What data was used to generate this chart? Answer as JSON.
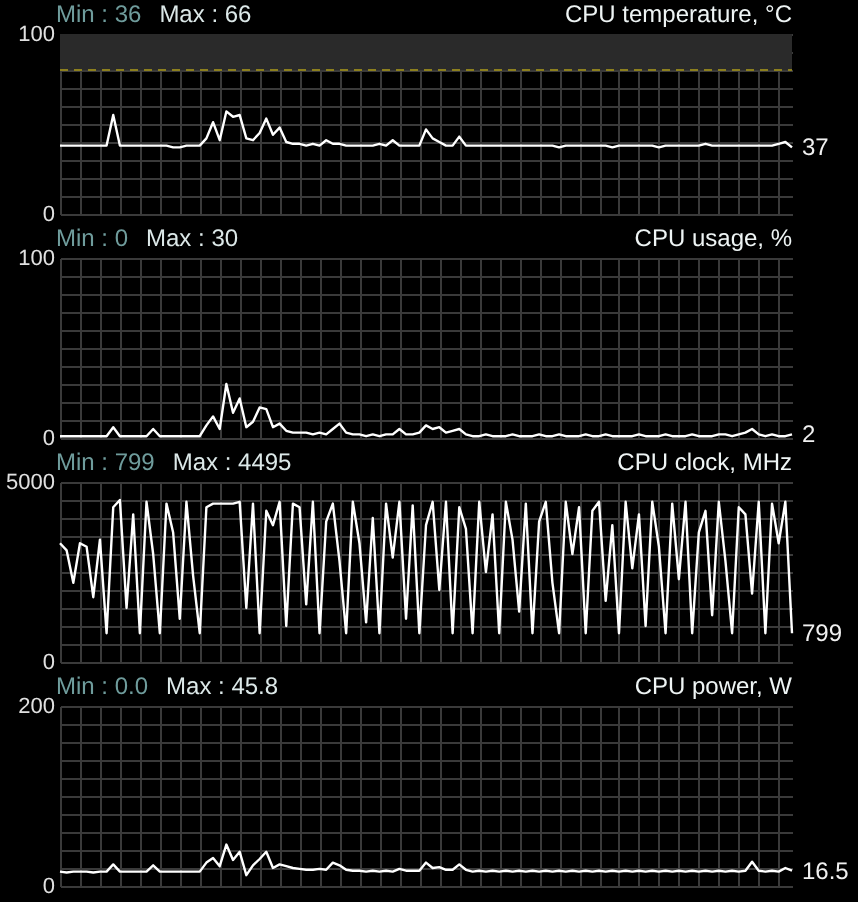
{
  "chart_data": [
    {
      "type": "line",
      "title": "CPU temperature, °C",
      "categories": [
        null,
        null,
        null,
        null,
        null,
        null,
        null,
        null,
        null,
        null,
        null,
        null,
        null,
        null,
        null,
        null,
        null,
        null,
        null,
        null,
        null,
        null,
        null,
        null,
        null,
        null,
        null,
        null,
        null,
        null,
        null,
        null,
        null,
        null,
        null,
        null,
        null,
        null,
        null,
        null,
        null,
        null,
        null,
        null,
        null,
        null,
        null,
        null,
        null,
        null,
        null,
        null,
        null,
        null,
        null,
        null,
        null,
        null,
        null,
        null,
        null,
        null,
        null,
        null,
        null,
        null,
        null,
        null,
        null,
        null,
        null,
        null,
        null,
        null,
        null,
        null,
        null,
        null,
        null,
        null,
        null,
        null,
        null,
        null,
        null,
        null,
        null,
        null,
        null,
        null,
        null,
        null,
        null,
        null,
        null,
        null,
        null,
        null,
        null,
        null,
        null,
        null,
        null,
        null,
        null,
        null,
        null,
        null,
        null,
        null,
        null
      ],
      "series": [
        {
          "color": "#ffffff",
          "values": [
            38,
            38,
            38,
            38,
            38,
            38,
            38,
            38,
            55,
            38,
            38,
            38,
            38,
            38,
            38,
            38,
            38,
            37,
            37,
            38,
            38,
            38,
            42,
            51,
            41,
            57,
            54,
            55,
            42,
            41,
            45,
            53,
            44,
            48,
            40,
            39,
            39,
            38,
            39,
            38,
            41,
            39,
            39,
            38,
            38,
            38,
            38,
            38,
            39,
            38,
            41,
            38,
            38,
            38,
            38,
            47,
            42,
            40,
            38,
            38,
            43,
            38,
            38,
            38,
            38,
            38,
            38,
            38,
            38,
            38,
            38,
            38,
            38,
            38,
            38,
            37,
            38,
            38,
            38,
            38,
            38,
            38,
            38,
            37,
            38,
            38,
            38,
            38,
            38,
            38,
            37,
            38,
            38,
            38,
            38,
            38,
            38,
            39,
            38,
            38,
            38,
            38,
            38,
            38,
            38,
            38,
            38,
            38,
            39,
            40,
            37
          ]
        }
      ],
      "ylim": [
        0,
        100
      ],
      "yticks": [
        0,
        {
          "value": 10,
          "label": null
        },
        {
          "value": 20,
          "label": null
        },
        {
          "value": 30,
          "label": null
        },
        {
          "value": 40,
          "label": null
        },
        {
          "value": 50,
          "label": null
        },
        {
          "value": 60,
          "label": null
        },
        {
          "value": 70,
          "label": null
        },
        {
          "value": 80,
          "label": null
        },
        {
          "value": 90,
          "label": null
        },
        100
      ],
      "bands": [
        {
          "axis": "y",
          "from": 80,
          "to": 100,
          "color": "#2a2a2a"
        }
      ],
      "ref_lines": [
        {
          "axis": "y",
          "value": 80,
          "color": "#8c7f1e",
          "line_style": "dashed"
        }
      ],
      "annotations": [
        "Min : 36",
        "Max : 66",
        "37"
      ],
      "grid": true,
      "marker": "none",
      "line_style": "solid"
    },
    {
      "type": "line",
      "title": "CPU usage, %",
      "categories": [
        null,
        null,
        null,
        null,
        null,
        null,
        null,
        null,
        null,
        null,
        null,
        null,
        null,
        null,
        null,
        null,
        null,
        null,
        null,
        null,
        null,
        null,
        null,
        null,
        null,
        null,
        null,
        null,
        null,
        null,
        null,
        null,
        null,
        null,
        null,
        null,
        null,
        null,
        null,
        null,
        null,
        null,
        null,
        null,
        null,
        null,
        null,
        null,
        null,
        null,
        null,
        null,
        null,
        null,
        null,
        null,
        null,
        null,
        null,
        null,
        null,
        null,
        null,
        null,
        null,
        null,
        null,
        null,
        null,
        null,
        null,
        null,
        null,
        null,
        null,
        null,
        null,
        null,
        null,
        null,
        null,
        null,
        null,
        null,
        null,
        null,
        null,
        null,
        null,
        null,
        null,
        null,
        null,
        null,
        null,
        null,
        null,
        null,
        null,
        null,
        null,
        null,
        null,
        null,
        null,
        null,
        null,
        null,
        null,
        null,
        null
      ],
      "series": [
        {
          "color": "#ffffff",
          "values": [
            1,
            1,
            1,
            1,
            1,
            1,
            1,
            1,
            6,
            1,
            1,
            1,
            1,
            1,
            5,
            1,
            1,
            1,
            1,
            1,
            1,
            1,
            7,
            12,
            5,
            30,
            14,
            22,
            6,
            9,
            17,
            16,
            6,
            8,
            4,
            3,
            3,
            3,
            2,
            3,
            2,
            5,
            8,
            3,
            2,
            2,
            1,
            2,
            1,
            2,
            2,
            5,
            2,
            2,
            3,
            7,
            5,
            6,
            3,
            4,
            5,
            2,
            1,
            1,
            2,
            1,
            1,
            1,
            2,
            1,
            1,
            1,
            2,
            1,
            1,
            2,
            1,
            1,
            1,
            2,
            1,
            1,
            2,
            1,
            1,
            1,
            1,
            2,
            1,
            1,
            1,
            2,
            1,
            1,
            1,
            2,
            1,
            1,
            1,
            2,
            2,
            1,
            2,
            3,
            5,
            2,
            1,
            2,
            1,
            1,
            2
          ]
        }
      ],
      "ylim": [
        0,
        100
      ],
      "yticks": [
        0,
        {
          "value": 10,
          "label": null
        },
        {
          "value": 20,
          "label": null
        },
        {
          "value": 30,
          "label": null
        },
        {
          "value": 40,
          "label": null
        },
        {
          "value": 50,
          "label": null
        },
        {
          "value": 60,
          "label": null
        },
        {
          "value": 70,
          "label": null
        },
        {
          "value": 80,
          "label": null
        },
        {
          "value": 90,
          "label": null
        },
        100
      ],
      "annotations": [
        "Min : 0",
        "Max : 30",
        "2"
      ],
      "grid": true,
      "marker": "none",
      "line_style": "solid"
    },
    {
      "type": "line",
      "title": "CPU clock, MHz",
      "categories": [
        null,
        null,
        null,
        null,
        null,
        null,
        null,
        null,
        null,
        null,
        null,
        null,
        null,
        null,
        null,
        null,
        null,
        null,
        null,
        null,
        null,
        null,
        null,
        null,
        null,
        null,
        null,
        null,
        null,
        null,
        null,
        null,
        null,
        null,
        null,
        null,
        null,
        null,
        null,
        null,
        null,
        null,
        null,
        null,
        null,
        null,
        null,
        null,
        null,
        null,
        null,
        null,
        null,
        null,
        null,
        null,
        null,
        null,
        null,
        null,
        null,
        null,
        null,
        null,
        null,
        null,
        null,
        null,
        null,
        null,
        null,
        null,
        null,
        null,
        null,
        null,
        null,
        null,
        null,
        null,
        null,
        null,
        null,
        null,
        null,
        null,
        null,
        null,
        null,
        null,
        null,
        null,
        null,
        null,
        null,
        null,
        null,
        null,
        null,
        null,
        null,
        null,
        null,
        null,
        null,
        null,
        null,
        null,
        null,
        null,
        null
      ],
      "series": [
        {
          "color": "#ffffff",
          "values": [
            3300,
            3100,
            2200,
            3300,
            3200,
            1800,
            3400,
            800,
            4300,
            4500,
            1500,
            4100,
            800,
            4450,
            3000,
            800,
            4400,
            3600,
            1200,
            4450,
            2400,
            800,
            4300,
            4400,
            4400,
            4400,
            4400,
            4450,
            1500,
            4400,
            800,
            4200,
            3800,
            4450,
            1000,
            4400,
            4300,
            1600,
            4450,
            800,
            3900,
            4400,
            2800,
            800,
            4450,
            3300,
            1100,
            4000,
            800,
            4400,
            2900,
            4450,
            1200,
            4350,
            800,
            3800,
            4450,
            2000,
            4450,
            800,
            4300,
            3700,
            800,
            4450,
            2500,
            4100,
            800,
            4450,
            3400,
            1400,
            4400,
            800,
            3900,
            4450,
            2200,
            800,
            4450,
            3000,
            4300,
            800,
            4200,
            4450,
            1700,
            3800,
            800,
            4450,
            2600,
            4100,
            1000,
            4450,
            3200,
            800,
            4400,
            2300,
            4450,
            800,
            3600,
            4200,
            1300,
            4450,
            2800,
            800,
            4300,
            4100,
            1900,
            4450,
            800,
            4400,
            3300,
            4450,
            800
          ]
        }
      ],
      "ylim": [
        0,
        5000
      ],
      "yticks": [
        0,
        {
          "value": 500,
          "label": null
        },
        {
          "value": 1000,
          "label": null
        },
        {
          "value": 1500,
          "label": null
        },
        {
          "value": 2000,
          "label": null
        },
        {
          "value": 2500,
          "label": null
        },
        {
          "value": 3000,
          "label": null
        },
        {
          "value": 3500,
          "label": null
        },
        {
          "value": 4000,
          "label": null
        },
        {
          "value": 4500,
          "label": null
        },
        5000
      ],
      "annotations": [
        "Min : 799",
        "Max : 4495",
        "799"
      ],
      "grid": true,
      "marker": "none",
      "line_style": "solid"
    },
    {
      "type": "line",
      "title": "CPU power, W",
      "categories": [
        null,
        null,
        null,
        null,
        null,
        null,
        null,
        null,
        null,
        null,
        null,
        null,
        null,
        null,
        null,
        null,
        null,
        null,
        null,
        null,
        null,
        null,
        null,
        null,
        null,
        null,
        null,
        null,
        null,
        null,
        null,
        null,
        null,
        null,
        null,
        null,
        null,
        null,
        null,
        null,
        null,
        null,
        null,
        null,
        null,
        null,
        null,
        null,
        null,
        null,
        null,
        null,
        null,
        null,
        null,
        null,
        null,
        null,
        null,
        null,
        null,
        null,
        null,
        null,
        null,
        null,
        null,
        null,
        null,
        null,
        null,
        null,
        null,
        null,
        null,
        null,
        null,
        null,
        null,
        null,
        null,
        null,
        null,
        null,
        null,
        null,
        null,
        null,
        null,
        null,
        null,
        null,
        null,
        null,
        null,
        null,
        null,
        null,
        null,
        null,
        null,
        null,
        null,
        null,
        null,
        null,
        null,
        null,
        null,
        null,
        null
      ],
      "series": [
        {
          "color": "#ffffff",
          "values": [
            16,
            15,
            16,
            16,
            16,
            15,
            16,
            16,
            24,
            16,
            16,
            16,
            16,
            16,
            23,
            16,
            16,
            16,
            16,
            16,
            16,
            16,
            26,
            31,
            22,
            46,
            29,
            38,
            12,
            23,
            30,
            38,
            20,
            24,
            22,
            20,
            19,
            18,
            18,
            19,
            18,
            26,
            23,
            18,
            17,
            17,
            16,
            17,
            16,
            17,
            16,
            19,
            17,
            17,
            17,
            26,
            20,
            21,
            18,
            18,
            24,
            18,
            16,
            17,
            16,
            17,
            16,
            17,
            16,
            17,
            16,
            17,
            16,
            17,
            16,
            17,
            16,
            17,
            16,
            17,
            16,
            17,
            16,
            17,
            16,
            17,
            16,
            17,
            16,
            17,
            16,
            17,
            16,
            17,
            16,
            17,
            16,
            17,
            16,
            17,
            16,
            17,
            16,
            17,
            27,
            17,
            16,
            17,
            16,
            20,
            17
          ]
        }
      ],
      "ylim": [
        0,
        200
      ],
      "yticks": [
        0,
        {
          "value": 20,
          "label": null
        },
        {
          "value": 40,
          "label": null
        },
        {
          "value": 60,
          "label": null
        },
        {
          "value": 80,
          "label": null
        },
        {
          "value": 100,
          "label": null
        },
        {
          "value": 120,
          "label": null
        },
        {
          "value": 140,
          "label": null
        },
        {
          "value": 160,
          "label": null
        },
        {
          "value": 180,
          "label": null
        },
        200
      ],
      "annotations": [
        "Min : 0.0",
        "Max : 45.8",
        "16.5"
      ],
      "grid": true,
      "marker": "none",
      "line_style": "solid"
    }
  ]
}
